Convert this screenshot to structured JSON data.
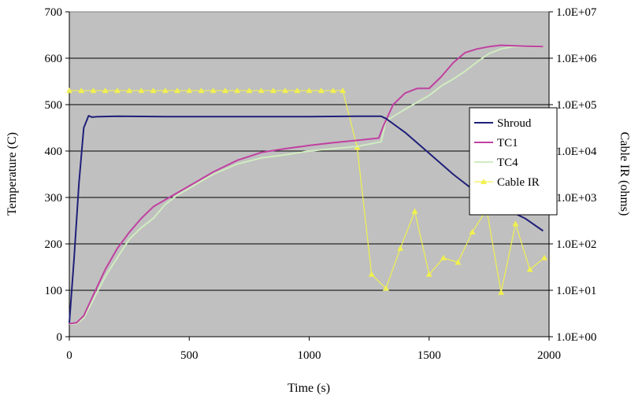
{
  "chart_data": {
    "type": "line",
    "title": "",
    "xlabel": "Time (s)",
    "ylabel": "Temperature (C)",
    "y2label": "Cable IR (ohms)",
    "xlim": [
      0,
      2000
    ],
    "ylim": [
      0,
      700
    ],
    "y2lim": [
      1,
      10000000
    ],
    "y2scale": "log",
    "x_ticks": [
      "0",
      "500",
      "1000",
      "1500",
      "2000"
    ],
    "y_ticks": [
      "0",
      "100",
      "200",
      "300",
      "400",
      "500",
      "600",
      "700"
    ],
    "y2_ticks": [
      "1.0E+00",
      "1.0E+01",
      "1.0E+02",
      "1.0E+03",
      "1.0E+04",
      "1.0E+05",
      "1.0E+06",
      "1.0E+07"
    ],
    "plot_background": "#c0c0c0",
    "gridlines": "horizontal",
    "legend_position": "right",
    "series": [
      {
        "name": "Shroud",
        "axis": "left",
        "color": "#1f1f7a",
        "x": [
          0,
          20,
          40,
          60,
          80,
          95,
          120,
          200,
          400,
          600,
          800,
          1000,
          1200,
          1300,
          1320,
          1400,
          1500,
          1600,
          1700,
          1800,
          1900,
          1975
        ],
        "y": [
          30,
          170,
          330,
          450,
          476,
          473,
          474,
          475,
          474,
          474,
          474,
          474,
          475,
          475,
          470,
          440,
          395,
          350,
          310,
          280,
          255,
          228
        ]
      },
      {
        "name": "TC1",
        "axis": "left",
        "color": "#c040a0",
        "x": [
          0,
          30,
          60,
          100,
          150,
          200,
          250,
          300,
          350,
          400,
          450,
          500,
          600,
          700,
          800,
          900,
          1000,
          1100,
          1200,
          1290,
          1310,
          1350,
          1400,
          1450,
          1500,
          1550,
          1600,
          1650,
          1700,
          1750,
          1800,
          1850,
          1900,
          1975
        ],
        "y": [
          28,
          30,
          45,
          90,
          145,
          190,
          225,
          255,
          280,
          295,
          310,
          325,
          355,
          380,
          397,
          405,
          412,
          418,
          423,
          428,
          455,
          500,
          525,
          535,
          535,
          560,
          590,
          612,
          620,
          625,
          628,
          627,
          626,
          625
        ]
      },
      {
        "name": "TC4",
        "axis": "left",
        "color": "#d0ecc0",
        "x": [
          0,
          30,
          60,
          100,
          150,
          200,
          250,
          300,
          350,
          400,
          450,
          500,
          600,
          700,
          800,
          900,
          1000,
          1100,
          1200,
          1300,
          1320,
          1400,
          1500,
          1550,
          1600,
          1650,
          1700,
          1750,
          1800,
          1850,
          1900,
          1975
        ],
        "y": [
          27,
          28,
          40,
          80,
          130,
          170,
          210,
          235,
          255,
          285,
          305,
          320,
          350,
          372,
          385,
          392,
          400,
          405,
          410,
          420,
          465,
          490,
          520,
          540,
          555,
          572,
          592,
          610,
          620,
          625,
          625,
          624
        ]
      },
      {
        "name": "Cable IR",
        "axis": "right",
        "color": "#f0f050",
        "x": [
          0,
          50,
          100,
          150,
          200,
          250,
          300,
          350,
          400,
          450,
          500,
          550,
          600,
          650,
          700,
          750,
          800,
          850,
          900,
          950,
          1000,
          1050,
          1100,
          1140,
          1200,
          1260,
          1320,
          1380,
          1440,
          1500,
          1560,
          1620,
          1680,
          1740,
          1800,
          1860,
          1920,
          1980
        ],
        "y": [
          200000,
          200000,
          200000,
          200000,
          200000,
          200000,
          200000,
          200000,
          200000,
          200000,
          200000,
          200000,
          200000,
          200000,
          200000,
          200000,
          200000,
          200000,
          200000,
          200000,
          200000,
          200000,
          200000,
          200000,
          12000,
          22,
          11,
          80,
          500,
          22,
          50,
          40,
          180,
          550,
          9,
          270,
          28,
          50
        ]
      }
    ]
  }
}
